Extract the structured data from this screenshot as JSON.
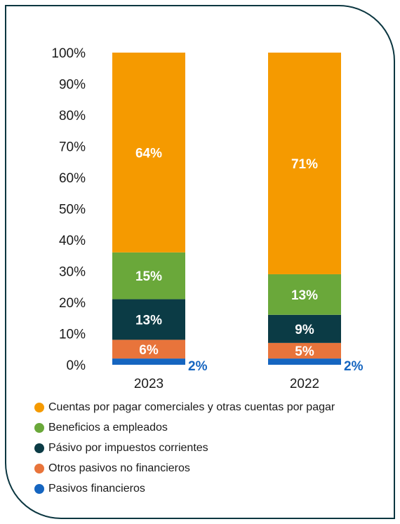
{
  "chart_data": {
    "type": "bar",
    "stacked": true,
    "percent_scale": true,
    "categories": [
      "2023",
      "2022"
    ],
    "series": [
      {
        "name": "Pasivos financieros",
        "values": [
          2,
          2
        ],
        "labels": [
          "2%",
          "2%"
        ],
        "color": "#1565c0",
        "label_position": "outside"
      },
      {
        "name": "Otros pasivos no financieros",
        "values": [
          6,
          5
        ],
        "labels": [
          "6%",
          "5%"
        ],
        "color": "#e8743b",
        "label_position": "inside"
      },
      {
        "name": "Pásivo por impuestos corrientes",
        "values": [
          13,
          9
        ],
        "labels": [
          "13%",
          "9%"
        ],
        "color": "#0b3b45",
        "label_position": "inside"
      },
      {
        "name": "Beneficios a empleados",
        "values": [
          15,
          13
        ],
        "labels": [
          "15%",
          "13%"
        ],
        "color": "#6aa83a",
        "label_position": "inside"
      },
      {
        "name": "Cuentas por pagar comerciales y otras cuentas por pagar",
        "values": [
          64,
          71
        ],
        "labels": [
          "64%",
          "71%"
        ],
        "color": "#f59a00",
        "label_position": "inside"
      }
    ],
    "ylim": [
      0,
      100
    ],
    "yticks": [
      "0%",
      "10%",
      "20%",
      "30%",
      "40%",
      "50%",
      "60%",
      "70%",
      "80%",
      "90%",
      "100%"
    ],
    "grid": false,
    "legend_position": "bottom",
    "legend_order": [
      4,
      3,
      2,
      1,
      0
    ]
  }
}
